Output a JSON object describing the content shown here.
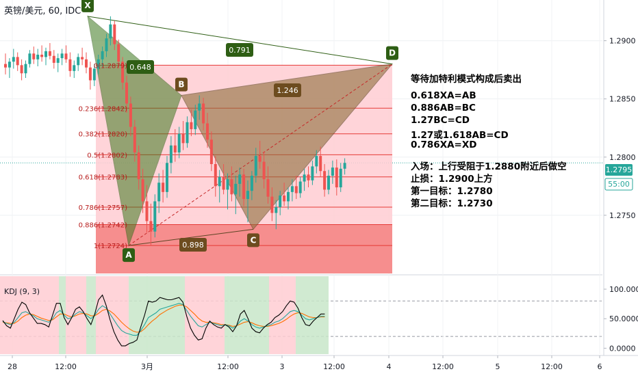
{
  "symbol_title": "英镑/美元, 60, IDC",
  "indicator_label": "KDJ (9, 3)",
  "price_label": "1.2795",
  "countdown_label": "55:00",
  "chart_data": {
    "type": "candlestick",
    "price_axis": {
      "min": 1.27,
      "max": 1.2935,
      "ticks": [
        "1.2750",
        "1.2800",
        "1.2850",
        "1.2900"
      ],
      "tick_values": [
        1.275,
        1.28,
        1.285,
        1.29
      ]
    },
    "kdj_axis": {
      "min": -10,
      "max": 122,
      "ticks": [
        "0.0000",
        "50.0000",
        "100.0000"
      ],
      "tick_values": [
        0,
        50,
        100
      ],
      "dashed_levels": [
        80,
        20
      ]
    },
    "time_ticks": [
      "28",
      "12:00",
      "3月",
      "12:00",
      "3",
      "12:00",
      "4",
      "12:00",
      "5",
      "12:00",
      "6",
      "12"
    ],
    "harmonic_points": [
      {
        "label": "X",
        "price": 1.2921
      },
      {
        "label": "A",
        "price": 1.2724
      },
      {
        "label": "B",
        "price": 1.2853
      },
      {
        "label": "C",
        "price": 1.2738
      },
      {
        "label": "D",
        "price": 1.288
      }
    ],
    "harmonic_ratios": [
      "0.648",
      "0.791",
      "1.246",
      "0.898"
    ],
    "fib_levels": [
      {
        "ratio": "0",
        "price": "1.2879"
      },
      {
        "ratio": "0.236",
        "price": "1.2842"
      },
      {
        "ratio": "0.382",
        "price": "1.2820"
      },
      {
        "ratio": "0.5",
        "price": "1.2802"
      },
      {
        "ratio": "0.618",
        "price": "1.2783"
      },
      {
        "ratio": "0.786",
        "price": "1.2757"
      },
      {
        "ratio": "0.886",
        "price": "1.2742"
      },
      {
        "ratio": "1",
        "price": "1.2724"
      }
    ],
    "candles": [
      [
        1.288,
        1.2889,
        1.2871,
        1.2877
      ],
      [
        1.2877,
        1.2885,
        1.2868,
        1.2882
      ],
      [
        1.2882,
        1.2893,
        1.2876,
        1.2886
      ],
      [
        1.2886,
        1.289,
        1.2874,
        1.2879
      ],
      [
        1.2879,
        1.2884,
        1.2866,
        1.2872
      ],
      [
        1.2872,
        1.2883,
        1.2868,
        1.288
      ],
      [
        1.288,
        1.2892,
        1.2877,
        1.2889
      ],
      [
        1.2889,
        1.2895,
        1.288,
        1.2884
      ],
      [
        1.2884,
        1.2893,
        1.2878,
        1.2888
      ],
      [
        1.2888,
        1.2896,
        1.2882,
        1.2886
      ],
      [
        1.2886,
        1.2894,
        1.2879,
        1.2891
      ],
      [
        1.2891,
        1.2898,
        1.2884,
        1.2887
      ],
      [
        1.2887,
        1.2892,
        1.2876,
        1.2881
      ],
      [
        1.2881,
        1.2889,
        1.2873,
        1.2885
      ],
      [
        1.2885,
        1.2893,
        1.2879,
        1.2889
      ],
      [
        1.2889,
        1.2896,
        1.2881,
        1.2884
      ],
      [
        1.2884,
        1.289,
        1.2869,
        1.2874
      ],
      [
        1.2874,
        1.2883,
        1.2868,
        1.2879
      ],
      [
        1.2879,
        1.2889,
        1.2874,
        1.2886
      ],
      [
        1.2886,
        1.2894,
        1.2879,
        1.2884
      ],
      [
        1.2884,
        1.289,
        1.2872,
        1.2877
      ],
      [
        1.2877,
        1.2882,
        1.2858,
        1.2866
      ],
      [
        1.2866,
        1.288,
        1.2861,
        1.2876
      ],
      [
        1.2876,
        1.2888,
        1.2871,
        1.2884
      ],
      [
        1.2884,
        1.2895,
        1.2878,
        1.2891
      ],
      [
        1.2891,
        1.2906,
        1.2886,
        1.2902
      ],
      [
        1.2902,
        1.2921,
        1.2896,
        1.2914
      ],
      [
        1.2914,
        1.2917,
        1.2892,
        1.2897
      ],
      [
        1.2897,
        1.2901,
        1.2876,
        1.2882
      ],
      [
        1.2882,
        1.2886,
        1.2858,
        1.2864
      ],
      [
        1.2864,
        1.287,
        1.2838,
        1.2846
      ],
      [
        1.2846,
        1.2852,
        1.2818,
        1.2826
      ],
      [
        1.2826,
        1.2832,
        1.2796,
        1.2804
      ],
      [
        1.2804,
        1.281,
        1.2772,
        1.2781
      ],
      [
        1.2781,
        1.279,
        1.2752,
        1.2762
      ],
      [
        1.2762,
        1.2776,
        1.2735,
        1.2745
      ],
      [
        1.2745,
        1.276,
        1.2724,
        1.2736
      ],
      [
        1.2736,
        1.2768,
        1.2731,
        1.2762
      ],
      [
        1.2762,
        1.2786,
        1.2752,
        1.2778
      ],
      [
        1.2778,
        1.2789,
        1.2761,
        1.277
      ],
      [
        1.277,
        1.2801,
        1.2765,
        1.2795
      ],
      [
        1.2795,
        1.2818,
        1.2786,
        1.281
      ],
      [
        1.281,
        1.2824,
        1.2796,
        1.2804
      ],
      [
        1.2804,
        1.2826,
        1.2799,
        1.282
      ],
      [
        1.282,
        1.2831,
        1.2806,
        1.2812
      ],
      [
        1.2812,
        1.2835,
        1.2808,
        1.283
      ],
      [
        1.283,
        1.2841,
        1.2818,
        1.2824
      ],
      [
        1.2824,
        1.2845,
        1.2819,
        1.284
      ],
      [
        1.284,
        1.2853,
        1.2832,
        1.2846
      ],
      [
        1.2846,
        1.2851,
        1.2823,
        1.2829
      ],
      [
        1.2829,
        1.2838,
        1.2808,
        1.2815
      ],
      [
        1.2815,
        1.2822,
        1.2788,
        1.2794
      ],
      [
        1.2794,
        1.2801,
        1.2766,
        1.2775
      ],
      [
        1.2775,
        1.2789,
        1.2761,
        1.2783
      ],
      [
        1.2783,
        1.2794,
        1.2768,
        1.2772
      ],
      [
        1.2772,
        1.2786,
        1.2755,
        1.2781
      ],
      [
        1.2781,
        1.2792,
        1.2762,
        1.2768
      ],
      [
        1.2768,
        1.2784,
        1.2751,
        1.2777
      ],
      [
        1.2777,
        1.2791,
        1.2766,
        1.2785
      ],
      [
        1.2785,
        1.279,
        1.2758,
        1.2764
      ],
      [
        1.2764,
        1.278,
        1.2744,
        1.2771
      ],
      [
        1.2771,
        1.2788,
        1.2763,
        1.2784
      ],
      [
        1.2784,
        1.2808,
        1.2778,
        1.2801
      ],
      [
        1.2801,
        1.2814,
        1.279,
        1.2796
      ],
      [
        1.2796,
        1.2805,
        1.2773,
        1.2781
      ],
      [
        1.2781,
        1.2792,
        1.276,
        1.2766
      ],
      [
        1.2766,
        1.2774,
        1.2745,
        1.2752
      ],
      [
        1.2752,
        1.2763,
        1.2738,
        1.2757
      ],
      [
        1.2757,
        1.2771,
        1.275,
        1.2767
      ],
      [
        1.2767,
        1.2778,
        1.2758,
        1.2762
      ],
      [
        1.2762,
        1.2774,
        1.2755,
        1.277
      ],
      [
        1.277,
        1.2781,
        1.2762,
        1.2775
      ],
      [
        1.2775,
        1.2784,
        1.2764,
        1.2769
      ],
      [
        1.2769,
        1.2783,
        1.2765,
        1.2779
      ],
      [
        1.2779,
        1.279,
        1.2771,
        1.2785
      ],
      [
        1.2785,
        1.2792,
        1.2774,
        1.278
      ],
      [
        1.278,
        1.2797,
        1.2776,
        1.2792
      ],
      [
        1.2792,
        1.2806,
        1.2786,
        1.2801
      ],
      [
        1.2801,
        1.2809,
        1.2783,
        1.2788
      ],
      [
        1.2788,
        1.2794,
        1.2766,
        1.2772
      ],
      [
        1.2772,
        1.2789,
        1.2768,
        1.2784
      ],
      [
        1.2784,
        1.2797,
        1.2777,
        1.2791
      ],
      [
        1.2791,
        1.2798,
        1.2767,
        1.2774
      ],
      [
        1.2774,
        1.2795,
        1.277,
        1.279
      ],
      [
        1.279,
        1.2799,
        1.2785,
        1.2795
      ]
    ],
    "kdj": {
      "k": [
        45,
        42,
        40,
        44,
        52,
        60,
        62,
        58,
        55,
        50,
        48,
        46,
        44,
        50,
        60,
        64,
        56,
        50,
        52,
        58,
        62,
        60,
        55,
        50,
        56,
        66,
        72,
        68,
        58,
        48,
        38,
        30,
        26,
        24,
        22,
        22,
        30,
        40,
        52,
        56,
        60,
        66,
        68,
        70,
        72,
        74,
        76,
        74,
        64,
        54,
        46,
        38,
        36,
        40,
        44,
        42,
        40,
        38,
        40,
        38,
        34,
        38,
        46,
        50,
        46,
        40,
        36,
        34,
        36,
        38,
        40,
        44,
        46,
        50,
        56,
        62,
        64,
        62,
        56,
        50,
        48,
        50,
        52,
        54,
        54
      ],
      "d": [
        44,
        43,
        42,
        42,
        46,
        52,
        56,
        58,
        57,
        54,
        51,
        49,
        47,
        48,
        53,
        58,
        58,
        55,
        53,
        55,
        58,
        59,
        58,
        55,
        55,
        59,
        64,
        66,
        63,
        58,
        51,
        44,
        38,
        33,
        29,
        27,
        28,
        33,
        40,
        46,
        51,
        57,
        61,
        65,
        68,
        71,
        73,
        73,
        70,
        64,
        58,
        51,
        46,
        44,
        44,
        43,
        42,
        40,
        40,
        39,
        37,
        38,
        41,
        44,
        45,
        43,
        40,
        38,
        37,
        37,
        38,
        40,
        42,
        45,
        49,
        54,
        58,
        60,
        59,
        56,
        53,
        52,
        52,
        53,
        53
      ],
      "j": [
        47,
        38,
        34,
        50,
        66,
        78,
        74,
        60,
        51,
        42,
        42,
        40,
        36,
        56,
        76,
        76,
        52,
        40,
        52,
        66,
        70,
        62,
        50,
        40,
        58,
        82,
        90,
        72,
        48,
        28,
        14,
        4,
        4,
        8,
        10,
        14,
        36,
        56,
        80,
        78,
        80,
        86,
        84,
        82,
        82,
        84,
        86,
        78,
        54,
        34,
        22,
        14,
        16,
        34,
        46,
        40,
        36,
        34,
        40,
        36,
        28,
        38,
        58,
        64,
        50,
        34,
        28,
        26,
        34,
        40,
        44,
        52,
        56,
        62,
        72,
        80,
        78,
        68,
        52,
        40,
        38,
        46,
        52,
        58,
        58
      ]
    }
  },
  "annotations": [
    "等待加特利模式构成后卖出",
    "",
    "0.618XA=AB",
    "0.886AB=BC",
    "1.27BC=CD",
    "1.27或1.618AB=CD",
    "0.786XA=XD",
    "",
    "入场：上行受阻于1.2880附近后做空",
    "止损：1.2900上方",
    "第一目标：1.2780",
    "第二目标：1.2730"
  ],
  "colors": {
    "up": "#26a69a",
    "down": "#ef5350",
    "pattern_green": "#3e7a1e",
    "pattern_brown": "#8d6e3a",
    "fib_fill": "#ffcdd2",
    "fib_line": "#e53935",
    "k_line": "#000000",
    "d_line": "#ff6f00",
    "j_line": "#26a69a",
    "price_tag": "#26a69a"
  }
}
